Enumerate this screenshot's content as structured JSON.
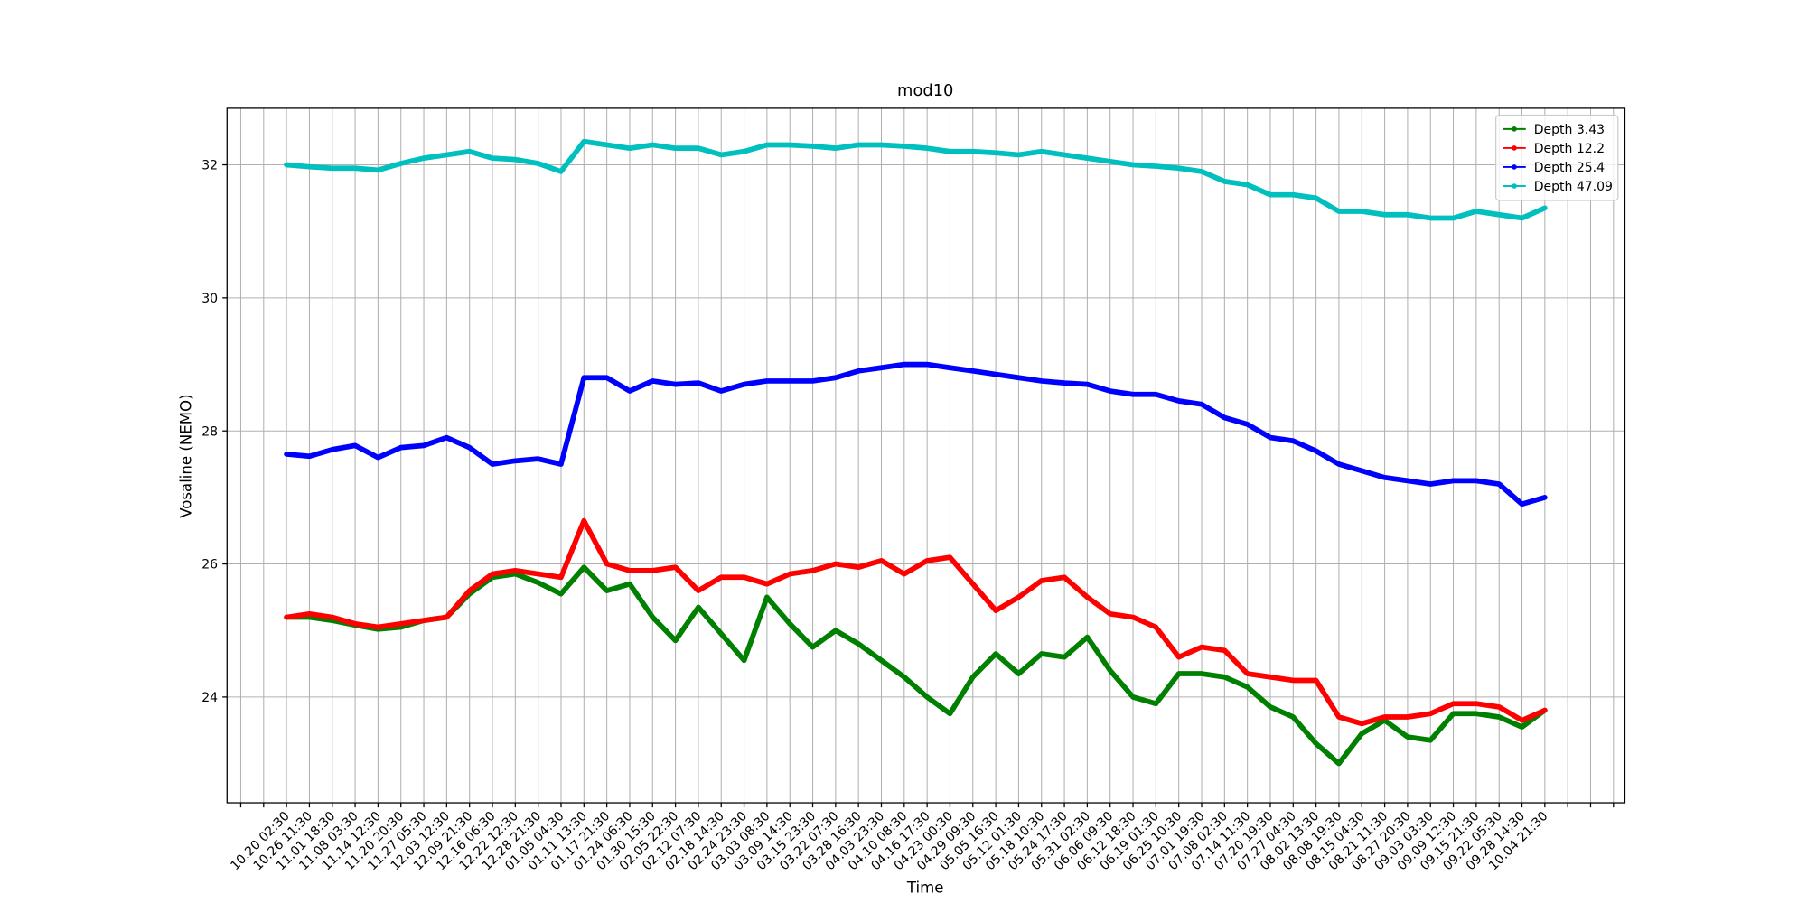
{
  "chart_data": {
    "type": "line",
    "title": "mod10",
    "x_label": "Time",
    "y_label": "Vosaline (NEMO)",
    "categories": [
      null,
      null,
      "10.20 02:30",
      "10.26 11:30",
      "11.01 18:30",
      "11.08 03:30",
      "11.14 12:30",
      "11.20 20:30",
      "11.27 05:30",
      "12.03 12:30",
      "12.09 21:30",
      "12.16 06:30",
      "12.22 12:30",
      "12.28 21:30",
      "01.05 04:30",
      "01.11 13:30",
      "01.17 21:30",
      "01.24 06:30",
      "01.30 15:30",
      "02.05 22:30",
      "02.12 07:30",
      "02.18 14:30",
      "02.24 23:30",
      "03.03 08:30",
      "03.09 14:30",
      "03.15 23:30",
      "03.22 07:30",
      "03.28 16:30",
      "04.03 23:30",
      "04.10 08:30",
      "04.16 17:30",
      "04.23 00:30",
      "04.29 09:30",
      "05.05 16:30",
      "05.12 01:30",
      "05.18 10:30",
      "05.24 17:30",
      "05.31 02:30",
      "06.06 09:30",
      "06.12 18:30",
      "06.19 01:30",
      "06.25 10:30",
      "07.01 19:30",
      "07.08 02:30",
      "07.14 11:30",
      "07.20 19:30",
      "07.27 04:30",
      "08.02 13:30",
      "08.08 19:30",
      "08.15 04:30",
      "08.21 11:30",
      "08.27 20:30",
      "09.03 03:30",
      "09.09 12:30",
      "09.15 21:30",
      "09.22 05:30",
      "09.28 14:30",
      "10.04 21:30",
      null,
      null,
      null
    ],
    "series": [
      {
        "name": "Depth 3.43",
        "color": "#008000",
        "values": [
          null,
          null,
          25.2,
          25.2,
          25.15,
          25.08,
          25.02,
          25.05,
          25.15,
          25.2,
          25.55,
          25.8,
          25.85,
          25.72,
          25.55,
          25.95,
          25.6,
          25.7,
          25.2,
          24.85,
          25.35,
          24.95,
          24.55,
          25.5,
          25.1,
          24.75,
          25.0,
          24.8,
          24.55,
          24.3,
          24.0,
          23.75,
          24.3,
          24.65,
          24.35,
          24.65,
          24.6,
          24.9,
          24.4,
          24.0,
          23.9,
          24.35,
          24.35,
          24.3,
          24.15,
          23.85,
          23.7,
          23.3,
          23.0,
          23.45,
          23.65,
          23.4,
          23.35,
          23.75,
          23.75,
          23.7,
          23.55,
          23.8,
          null,
          null,
          null
        ]
      },
      {
        "name": "Depth 12.2",
        "color": "#ff0000",
        "values": [
          null,
          null,
          25.2,
          25.25,
          25.2,
          25.1,
          25.05,
          25.1,
          25.15,
          25.2,
          25.6,
          25.85,
          25.9,
          25.85,
          25.8,
          26.65,
          26.0,
          25.9,
          25.9,
          25.95,
          25.6,
          25.8,
          25.8,
          25.7,
          25.85,
          25.9,
          26.0,
          25.95,
          26.05,
          25.85,
          26.05,
          26.1,
          25.7,
          25.3,
          25.5,
          25.75,
          25.8,
          25.5,
          25.25,
          25.2,
          25.05,
          24.6,
          24.75,
          24.7,
          24.35,
          24.3,
          24.25,
          24.25,
          23.7,
          23.6,
          23.7,
          23.7,
          23.75,
          23.9,
          23.9,
          23.85,
          23.65,
          23.8,
          null,
          null,
          null
        ]
      },
      {
        "name": "Depth 25.4",
        "color": "#0000ff",
        "values": [
          null,
          null,
          27.65,
          27.62,
          27.72,
          27.78,
          27.6,
          27.75,
          27.78,
          27.9,
          27.75,
          27.5,
          27.55,
          27.58,
          27.5,
          28.8,
          28.8,
          28.6,
          28.75,
          28.7,
          28.72,
          28.6,
          28.7,
          28.75,
          28.75,
          28.75,
          28.8,
          28.9,
          28.95,
          29.0,
          29.0,
          28.95,
          28.9,
          28.85,
          28.8,
          28.75,
          28.72,
          28.7,
          28.6,
          28.55,
          28.55,
          28.45,
          28.4,
          28.2,
          28.1,
          27.9,
          27.85,
          27.7,
          27.5,
          27.4,
          27.3,
          27.25,
          27.2,
          27.25,
          27.25,
          27.2,
          26.9,
          27.0,
          null,
          null,
          null
        ]
      },
      {
        "name": "Depth 47.09",
        "color": "#00bfbf",
        "values": [
          null,
          null,
          32.0,
          31.97,
          31.95,
          31.95,
          31.92,
          32.02,
          32.1,
          32.15,
          32.2,
          32.1,
          32.08,
          32.02,
          31.9,
          32.35,
          32.3,
          32.25,
          32.3,
          32.25,
          32.25,
          32.15,
          32.2,
          32.3,
          32.3,
          32.28,
          32.25,
          32.3,
          32.3,
          32.28,
          32.25,
          32.2,
          32.2,
          32.18,
          32.15,
          32.2,
          32.15,
          32.1,
          32.05,
          32.0,
          31.98,
          31.95,
          31.9,
          31.75,
          31.7,
          31.55,
          31.55,
          31.5,
          31.3,
          31.3,
          31.25,
          31.25,
          31.2,
          31.2,
          31.3,
          31.25,
          31.2,
          31.35,
          null,
          null,
          null
        ]
      }
    ],
    "ylim": [
      22.41,
      32.85
    ],
    "yticks": [
      24,
      26,
      28,
      30,
      32
    ],
    "grid": true,
    "legend": "upper right"
  }
}
